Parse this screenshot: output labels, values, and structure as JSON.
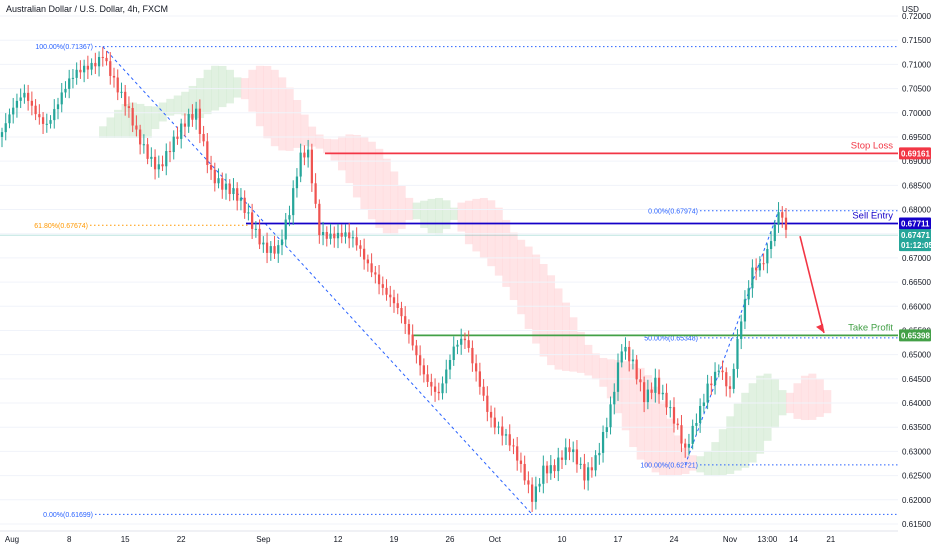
{
  "header": {
    "title": "Australian Dollar / U.S. Dollar, 4h, FXCM",
    "currency": "USD"
  },
  "colors": {
    "up": "#26a69a",
    "down": "#ef5350",
    "stop": "#f23645",
    "entry": "#1400c8",
    "profit": "#43a047",
    "fib": "#2962ff",
    "fib618": "#ff9800",
    "cloud_up": "#c8e6c9",
    "cloud_down": "#ffcdd2"
  },
  "chart_data": {
    "type": "candlestick",
    "ylim": [
      0.615,
      0.72
    ],
    "yticks": [
      "0.72000",
      "0.71500",
      "0.71000",
      "0.70500",
      "0.70000",
      "0.69500",
      "0.69000",
      "0.68500",
      "0.68000",
      "0.67500",
      "0.67000",
      "0.66500",
      "0.66000",
      "0.65500",
      "0.65000",
      "0.64500",
      "0.64000",
      "0.63500",
      "0.63000",
      "0.62500",
      "0.62000",
      "0.61500"
    ],
    "xticks": [
      "Aug",
      "8",
      "15",
      "22",
      "Sep",
      "12",
      "19",
      "26",
      "Oct",
      "10",
      "17",
      "24",
      "Nov",
      "13:00",
      "14",
      "21"
    ],
    "levels": [
      {
        "name": "Stop Loss",
        "value": 0.69161,
        "tag": "0.69161",
        "color": "#f23645"
      },
      {
        "name": "Sell Entry",
        "value": 0.67711,
        "tag": "0.67711",
        "color": "#1400c8"
      },
      {
        "name": "Take Profit",
        "value": 0.65398,
        "tag": "0.65398",
        "color": "#43a047"
      }
    ],
    "current_price": {
      "value": 0.67471,
      "tag": "0.67471",
      "countdown": "01:12:05"
    },
    "fib_left": [
      {
        "label": "100.00%(0.71367)",
        "value": 0.71367
      },
      {
        "label": "61.80%(0.67674)",
        "value": 0.67674
      },
      {
        "label": "0.00%(0.61699)",
        "value": 0.61699
      }
    ],
    "fib_right": [
      {
        "label": "0.00%(0.67974)",
        "value": 0.67974
      },
      {
        "label": "50.00%(0.65348)",
        "value": 0.65348
      },
      {
        "label": "100.00%(0.62721)",
        "value": 0.62721
      }
    ],
    "anchors": [
      {
        "i": 0,
        "v": 0.696
      },
      {
        "i": 6,
        "v": 0.703
      },
      {
        "i": 12,
        "v": 0.699
      },
      {
        "i": 18,
        "v": 0.705
      },
      {
        "i": 23,
        "v": 0.71
      },
      {
        "i": 27,
        "v": 0.7135
      },
      {
        "i": 31,
        "v": 0.704
      },
      {
        "i": 36,
        "v": 0.695
      },
      {
        "i": 42,
        "v": 0.69
      },
      {
        "i": 47,
        "v": 0.694
      },
      {
        "i": 52,
        "v": 0.7
      },
      {
        "i": 56,
        "v": 0.689
      },
      {
        "i": 60,
        "v": 0.684
      },
      {
        "i": 65,
        "v": 0.679
      },
      {
        "i": 70,
        "v": 0.674
      },
      {
        "i": 74,
        "v": 0.672
      },
      {
        "i": 77,
        "v": 0.678
      },
      {
        "i": 80,
        "v": 0.69
      },
      {
        "i": 82,
        "v": 0.692
      },
      {
        "i": 85,
        "v": 0.677
      },
      {
        "i": 90,
        "v": 0.674
      },
      {
        "i": 95,
        "v": 0.672
      },
      {
        "i": 100,
        "v": 0.668
      },
      {
        "i": 105,
        "v": 0.66
      },
      {
        "i": 110,
        "v": 0.651
      },
      {
        "i": 113,
        "v": 0.647
      },
      {
        "i": 117,
        "v": 0.643
      },
      {
        "i": 121,
        "v": 0.65
      },
      {
        "i": 124,
        "v": 0.652
      },
      {
        "i": 128,
        "v": 0.645
      },
      {
        "i": 131,
        "v": 0.638
      },
      {
        "i": 135,
        "v": 0.632
      },
      {
        "i": 139,
        "v": 0.6255
      },
      {
        "i": 142,
        "v": 0.621
      },
      {
        "i": 145,
        "v": 0.628
      },
      {
        "i": 148,
        "v": 0.627
      },
      {
        "i": 152,
        "v": 0.629
      },
      {
        "i": 156,
        "v": 0.625
      },
      {
        "i": 159,
        "v": 0.63
      },
      {
        "i": 163,
        "v": 0.639
      },
      {
        "i": 166,
        "v": 0.65
      },
      {
        "i": 169,
        "v": 0.647
      },
      {
        "i": 172,
        "v": 0.642
      },
      {
        "i": 175,
        "v": 0.646
      },
      {
        "i": 178,
        "v": 0.64
      },
      {
        "i": 181,
        "v": 0.633
      },
      {
        "i": 183,
        "v": 0.6285
      },
      {
        "i": 186,
        "v": 0.637
      },
      {
        "i": 189,
        "v": 0.645
      },
      {
        "i": 192,
        "v": 0.648
      },
      {
        "i": 195,
        "v": 0.641
      },
      {
        "i": 198,
        "v": 0.656
      },
      {
        "i": 201,
        "v": 0.668
      },
      {
        "i": 204,
        "v": 0.671
      },
      {
        "i": 207,
        "v": 0.677
      },
      {
        "i": 208,
        "v": 0.6796
      },
      {
        "i": 210,
        "v": 0.6747
      }
    ],
    "forecast": {
      "from_value": 0.6745,
      "to_value": 0.6545
    }
  }
}
